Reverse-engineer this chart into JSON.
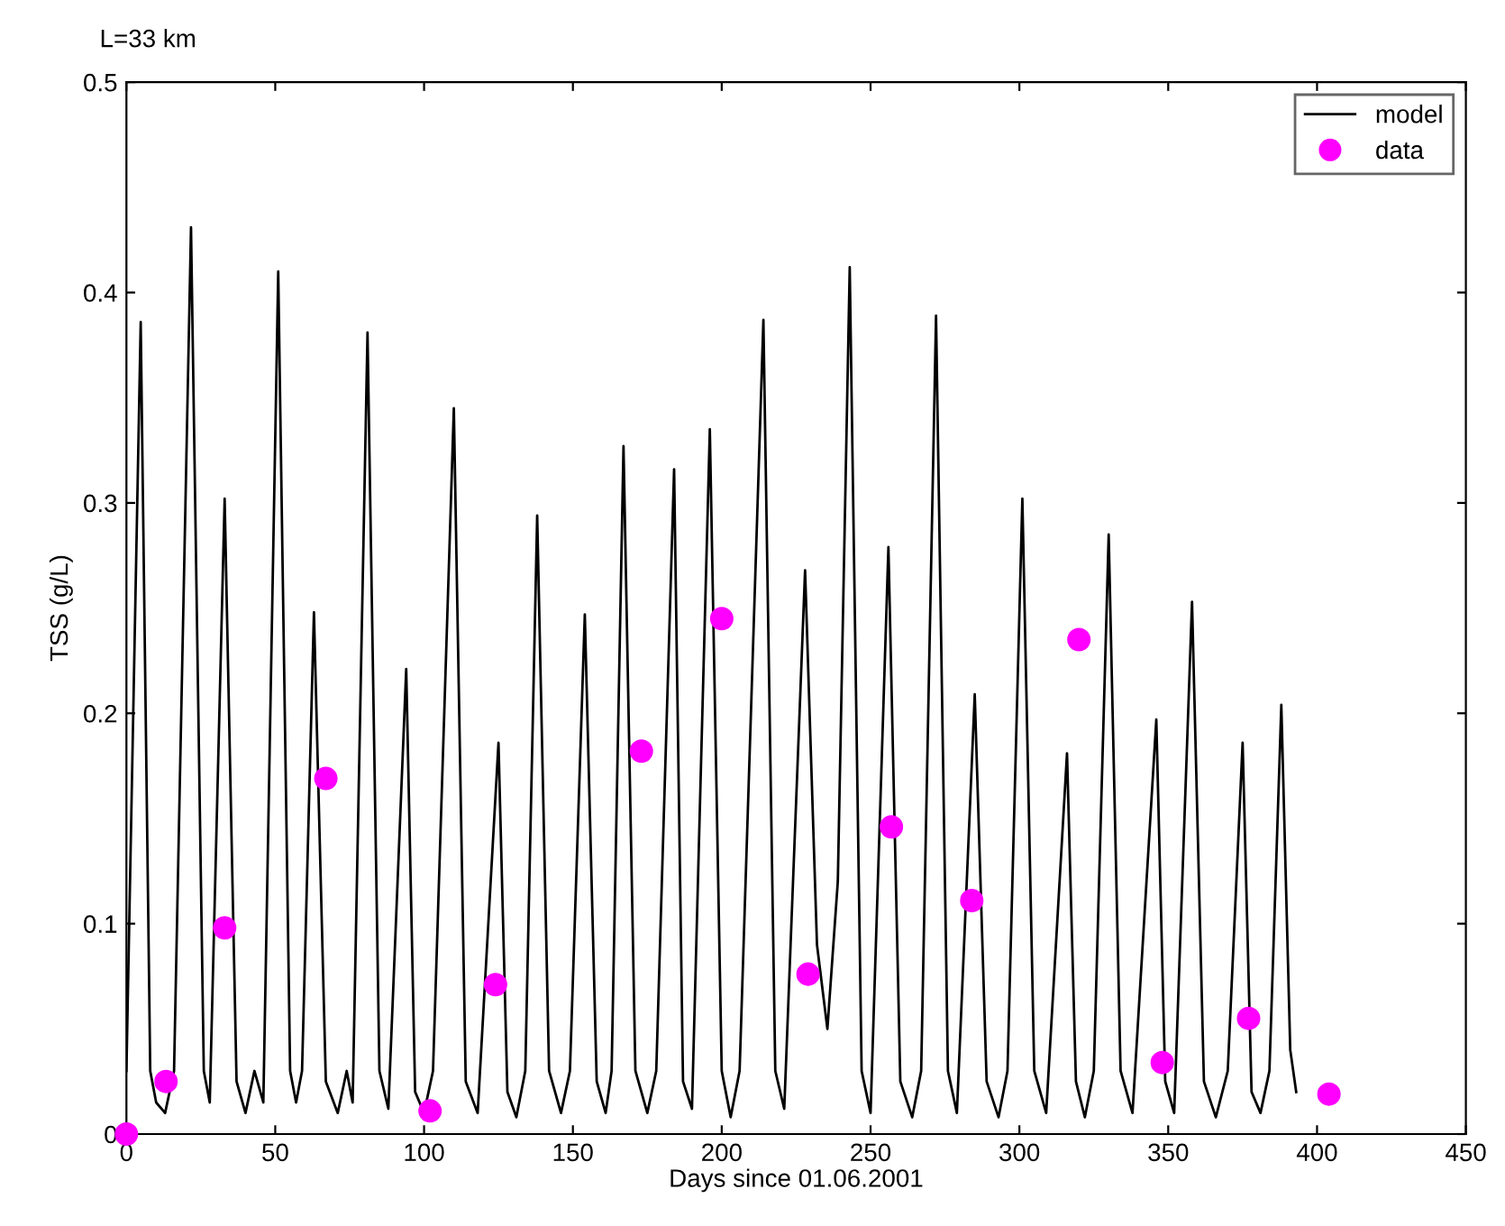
{
  "chart_data": {
    "type": "line",
    "title": "L=33 km",
    "xlabel": "Days since 01.06.2001",
    "ylabel": "TSS (g/L)",
    "xlim": [
      0,
      450
    ],
    "ylim": [
      0,
      0.5
    ],
    "xticks": [
      0,
      50,
      100,
      150,
      200,
      250,
      300,
      350,
      400,
      450
    ],
    "yticks": [
      0,
      0.1,
      0.2,
      0.3,
      0.4,
      0.5
    ],
    "grid": false,
    "legend": "top right",
    "series": [
      {
        "name": "model",
        "color": "#000000",
        "marker": "none",
        "line_style": "solid",
        "x": [
          0,
          4.8,
          8,
          10,
          13,
          16,
          21.7,
          26,
          28,
          33,
          37,
          40,
          43,
          46,
          51,
          55,
          57,
          59,
          63,
          67,
          71,
          74,
          76,
          81,
          85,
          88,
          94,
          97,
          100,
          103,
          110,
          114,
          118,
          125,
          128,
          131,
          134,
          138,
          142,
          146,
          149,
          154,
          158,
          161,
          163,
          167,
          171,
          175,
          178,
          184,
          187,
          190,
          196,
          200,
          203,
          206,
          214,
          218,
          221,
          228,
          232,
          235.5,
          239,
          243,
          247,
          250,
          256,
          260,
          264,
          267,
          272,
          276,
          279,
          285,
          289,
          293,
          296,
          301,
          305,
          309,
          316,
          319,
          322,
          325,
          330,
          334,
          338,
          346,
          349,
          352,
          358,
          362,
          366,
          370,
          375,
          378,
          381,
          384,
          388,
          391,
          393
        ],
        "values": [
          0.03,
          0.386,
          0.03,
          0.015,
          0.01,
          0.03,
          0.431,
          0.03,
          0.015,
          0.302,
          0.025,
          0.01,
          0.03,
          0.015,
          0.41,
          0.03,
          0.015,
          0.03,
          0.248,
          0.025,
          0.01,
          0.03,
          0.015,
          0.381,
          0.03,
          0.012,
          0.221,
          0.02,
          0.01,
          0.03,
          0.345,
          0.025,
          0.01,
          0.186,
          0.02,
          0.008,
          0.03,
          0.294,
          0.03,
          0.01,
          0.03,
          0.247,
          0.025,
          0.01,
          0.03,
          0.327,
          0.03,
          0.01,
          0.03,
          0.316,
          0.025,
          0.012,
          0.335,
          0.03,
          0.008,
          0.03,
          0.387,
          0.03,
          0.012,
          0.268,
          0.09,
          0.05,
          0.12,
          0.412,
          0.03,
          0.01,
          0.279,
          0.025,
          0.008,
          0.03,
          0.389,
          0.03,
          0.01,
          0.209,
          0.025,
          0.008,
          0.03,
          0.302,
          0.03,
          0.01,
          0.181,
          0.025,
          0.008,
          0.03,
          0.285,
          0.03,
          0.01,
          0.197,
          0.025,
          0.01,
          0.253,
          0.025,
          0.008,
          0.03,
          0.186,
          0.02,
          0.01,
          0.03,
          0.204,
          0.04,
          0.02
        ]
      },
      {
        "name": "data",
        "type": "scatter",
        "color": "#ff00ff",
        "marker": "circle",
        "x": [
          0,
          13.3,
          33,
          67,
          102,
          124,
          173,
          200,
          229,
          257,
          284,
          320,
          348,
          377,
          404
        ],
        "values": [
          0.0,
          0.025,
          0.098,
          0.169,
          0.011,
          0.071,
          0.182,
          0.245,
          0.076,
          0.146,
          0.111,
          0.235,
          0.034,
          0.055,
          0.019
        ]
      }
    ]
  }
}
